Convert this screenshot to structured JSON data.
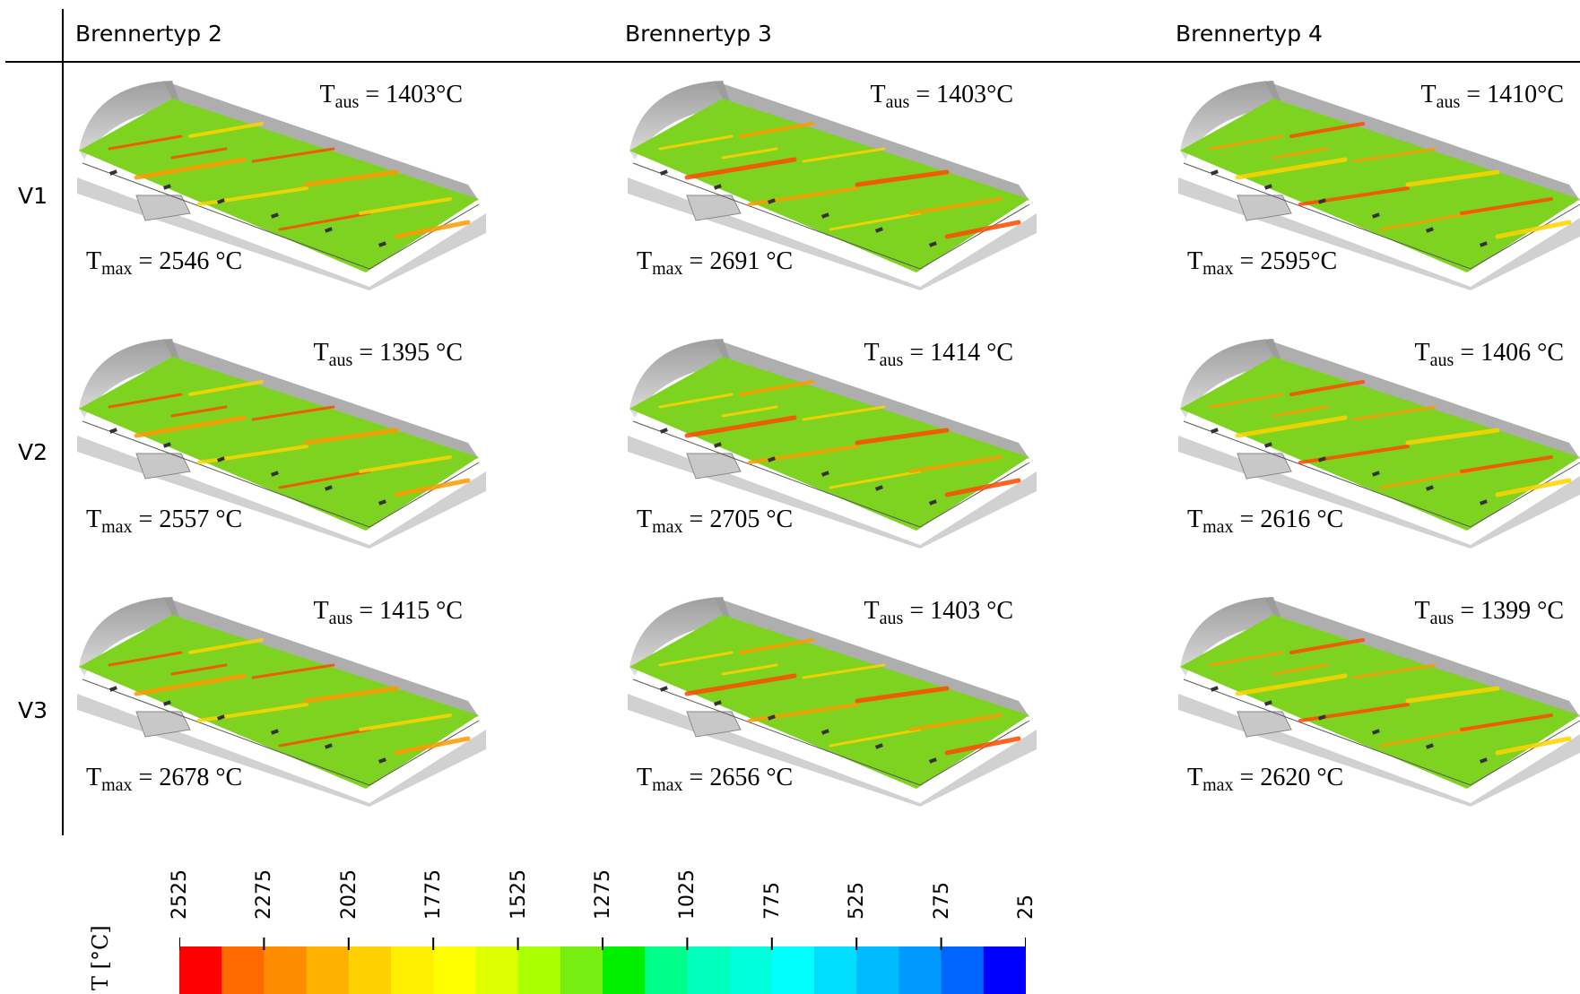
{
  "columns": [
    {
      "label": "Brennertyp 2"
    },
    {
      "label": "Brennertyp 3"
    },
    {
      "label": "Brennertyp 4"
    }
  ],
  "rows": [
    {
      "label": "V1"
    },
    {
      "label": "V2"
    },
    {
      "label": "V3"
    }
  ],
  "symbols": {
    "t": "T",
    "aus_sub": "aus",
    "max_sub": "max"
  },
  "cells": [
    [
      {
        "taus": "= 1403°C",
        "tmax": "= 2546 °C"
      },
      {
        "taus": "= 1403°C",
        "tmax": "= 2691 °C"
      },
      {
        "taus": "= 1410°C",
        "tmax": "= 2595°C"
      }
    ],
    [
      {
        "taus": "= 1395 °C",
        "tmax": "= 2557 °C"
      },
      {
        "taus": "= 1414 °C",
        "tmax": "= 2705 °C"
      },
      {
        "taus": "= 1406 °C",
        "tmax": "= 2616 °C"
      }
    ],
    [
      {
        "taus": "= 1415 °C",
        "tmax": "= 2678 °C"
      },
      {
        "taus": "= 1403 °C",
        "tmax": "= 2656 °C"
      },
      {
        "taus": "= 1399 °C",
        "tmax": "= 2620 °C"
      }
    ]
  ],
  "colorbar": {
    "unit_label": "T [°C]",
    "ticks": [
      "2525",
      "2275",
      "2025",
      "1775",
      "1525",
      "1275",
      "1025",
      "775",
      "525",
      "275",
      "25"
    ],
    "colors": [
      "#ff0000",
      "#ff6a00",
      "#ff8c00",
      "#ffb000",
      "#ffd000",
      "#ffee00",
      "#ffff00",
      "#ddff00",
      "#aaff00",
      "#77ee11",
      "#00ee00",
      "#00ff88",
      "#00ffbb",
      "#00ffdd",
      "#00ffff",
      "#00ddff",
      "#00bbff",
      "#0099ff",
      "#0066ff",
      "#0000ff"
    ]
  }
}
